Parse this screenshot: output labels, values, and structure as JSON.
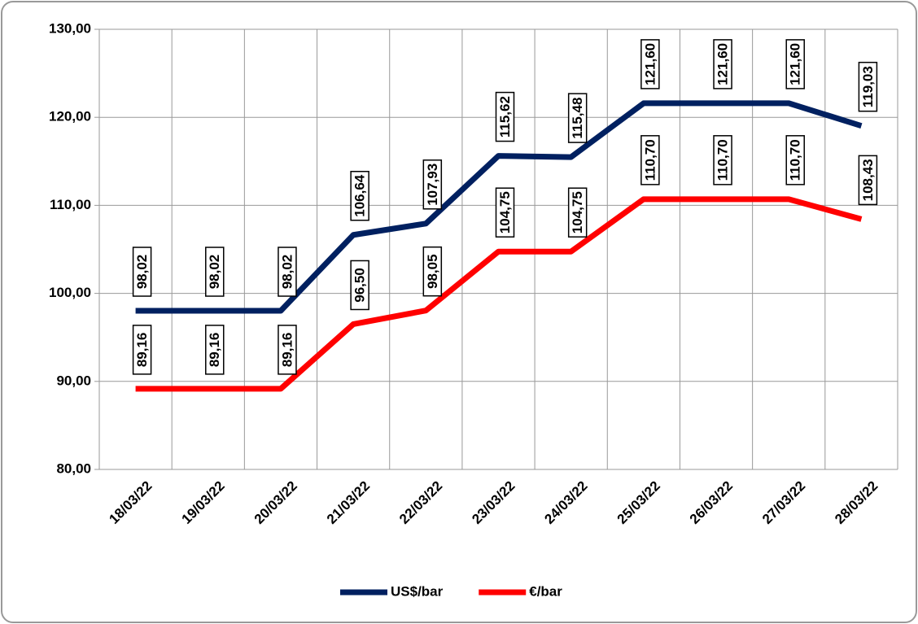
{
  "chart_data": {
    "type": "line",
    "categories": [
      "18/03/22",
      "19/03/22",
      "20/03/22",
      "21/03/22",
      "22/03/22",
      "23/03/22",
      "24/03/22",
      "25/03/22",
      "26/03/22",
      "27/03/22",
      "28/03/22"
    ],
    "series": [
      {
        "name": "US$/bar",
        "color": "#002060",
        "values": [
          98.02,
          98.02,
          98.02,
          106.64,
          107.93,
          115.62,
          115.48,
          121.6,
          121.6,
          121.6,
          119.03
        ],
        "value_labels": [
          "98,02",
          "98,02",
          "98,02",
          "106,64",
          "107,93",
          "115,62",
          "115,48",
          "121,60",
          "121,60",
          "121,60",
          "119,03"
        ]
      },
      {
        "name": "€/bar",
        "color": "#ff0000",
        "values": [
          89.16,
          89.16,
          89.16,
          96.5,
          98.05,
          104.75,
          104.75,
          110.7,
          110.7,
          110.7,
          108.43
        ],
        "value_labels": [
          "89,16",
          "89,16",
          "89,16",
          "96,50",
          "98,05",
          "104,75",
          "104,75",
          "110,70",
          "110,70",
          "110,70",
          "108,43"
        ]
      }
    ],
    "ylim": [
      80,
      130
    ],
    "yticks": [
      {
        "value": 80,
        "label": "80,00"
      },
      {
        "value": 90,
        "label": "90,00"
      },
      {
        "value": 100,
        "label": "100,00"
      },
      {
        "value": 110,
        "label": "110,00"
      },
      {
        "value": 120,
        "label": "120,00"
      },
      {
        "value": 130,
        "label": "130,00"
      }
    ],
    "grid": true,
    "legend": "bottom"
  }
}
